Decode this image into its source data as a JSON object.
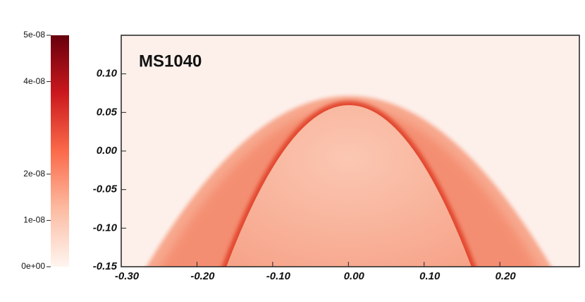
{
  "chart_data": {
    "type": "heatmap",
    "annotation": "MS1040",
    "xlim": [
      -0.3,
      0.305
    ],
    "ylim": [
      -0.15,
      0.15
    ],
    "xticks": [
      {
        "value": -0.3,
        "label": "-0.30"
      },
      {
        "value": -0.2,
        "label": "-0.20"
      },
      {
        "value": -0.1,
        "label": "-0.10"
      },
      {
        "value": 0,
        "label": "0.00"
      },
      {
        "value": 0.1,
        "label": "0.10"
      },
      {
        "value": 0.2,
        "label": "0.20"
      }
    ],
    "yticks": [
      {
        "value": 0.1,
        "label": "0.10"
      },
      {
        "value": 0.05,
        "label": "0.05"
      },
      {
        "value": 0,
        "label": "0.00"
      },
      {
        "value": -0.05,
        "label": "-0.05"
      },
      {
        "value": -0.1,
        "label": "-0.10"
      },
      {
        "value": -0.15,
        "label": "-0.15"
      }
    ],
    "colorbar": {
      "lim": [
        0,
        5e-08
      ],
      "ticks": [
        {
          "value": 5e-08,
          "label": "5e-08"
        },
        {
          "value": 4e-08,
          "label": "4e-08"
        },
        {
          "value": 2e-08,
          "label": "2e-08"
        },
        {
          "value": 1e-08,
          "label": "1e-08"
        },
        {
          "value": 0,
          "label": "0e+00"
        }
      ],
      "colors": [
        "#fff5f0",
        "#fcbba1",
        "#fb6a4a",
        "#cb181d",
        "#67000d"
      ]
    }
  }
}
